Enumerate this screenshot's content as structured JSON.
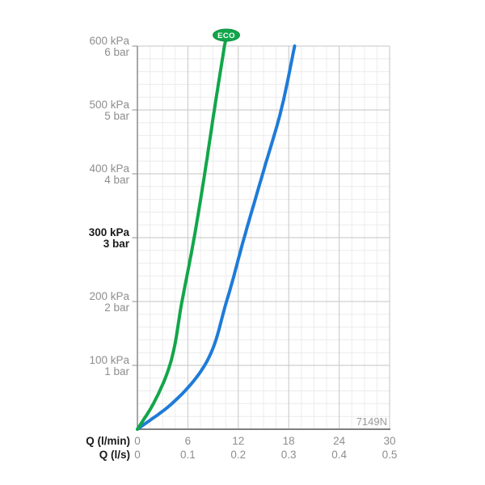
{
  "chart_data": {
    "type": "line",
    "title": "",
    "model_code": "7149N",
    "eco_badge": {
      "label": "ECO",
      "fill": "#12a64a",
      "border": "#0e8f40",
      "text_color": "#ffffff"
    },
    "x_axis": {
      "primary_label": "Q (l/min)",
      "secondary_label": "Q (l/s)",
      "primary_ticks": [
        "0",
        "6",
        "12",
        "18",
        "24",
        "30"
      ],
      "secondary_ticks": [
        "0",
        "0.1",
        "0.2",
        "0.3",
        "0.4",
        "0.5"
      ],
      "range_lmin": [
        0,
        30
      ],
      "major_step_lmin": 6,
      "minor_step_lmin": 1.5,
      "grid": true
    },
    "y_axis": {
      "range_kpa": [
        0,
        600
      ],
      "major_step_kpa": 100,
      "minor_step_kpa": 20,
      "ticks": [
        {
          "value": 600,
          "kpa": "600 kPa",
          "bar": "6 bar",
          "bold": false
        },
        {
          "value": 500,
          "kpa": "500 kPa",
          "bar": "5 bar",
          "bold": false
        },
        {
          "value": 400,
          "kpa": "400 kPa",
          "bar": "4 bar",
          "bold": false
        },
        {
          "value": 300,
          "kpa": "300 kPa",
          "bar": "3 bar",
          "bold": true
        },
        {
          "value": 200,
          "kpa": "200 kPa",
          "bar": "2 bar",
          "bold": false
        },
        {
          "value": 100,
          "kpa": "100 kPa",
          "bar": "1 bar",
          "bold": false
        }
      ]
    },
    "series": [
      {
        "name": "eco-curve",
        "label": "ECO",
        "color": "#12a64a",
        "points_kpa_lmin": [
          [
            0,
            0
          ],
          [
            40,
            1.9
          ],
          [
            100,
            3.85
          ],
          [
            200,
            5.3
          ],
          [
            300,
            6.75
          ],
          [
            400,
            8.0
          ],
          [
            500,
            9.15
          ],
          [
            600,
            10.35
          ]
        ]
      },
      {
        "name": "standard-curve",
        "label": "",
        "color": "#1e7bd8",
        "points_kpa_lmin": [
          [
            0,
            0
          ],
          [
            40,
            4.1
          ],
          [
            100,
            8.0
          ],
          [
            200,
            10.6
          ],
          [
            300,
            12.7
          ],
          [
            400,
            14.9
          ],
          [
            500,
            17.1
          ],
          [
            600,
            18.7
          ]
        ]
      }
    ],
    "colors": {
      "grid_minor": "#ececec",
      "grid_major": "#c6c6c6",
      "axis": "#8c8c8c",
      "axis_bottom": "#7f7f7f",
      "label_gray": "#8e8e8e",
      "label_bold": "#1a1a1a",
      "model_code_gray": "#9b9b9b"
    }
  }
}
